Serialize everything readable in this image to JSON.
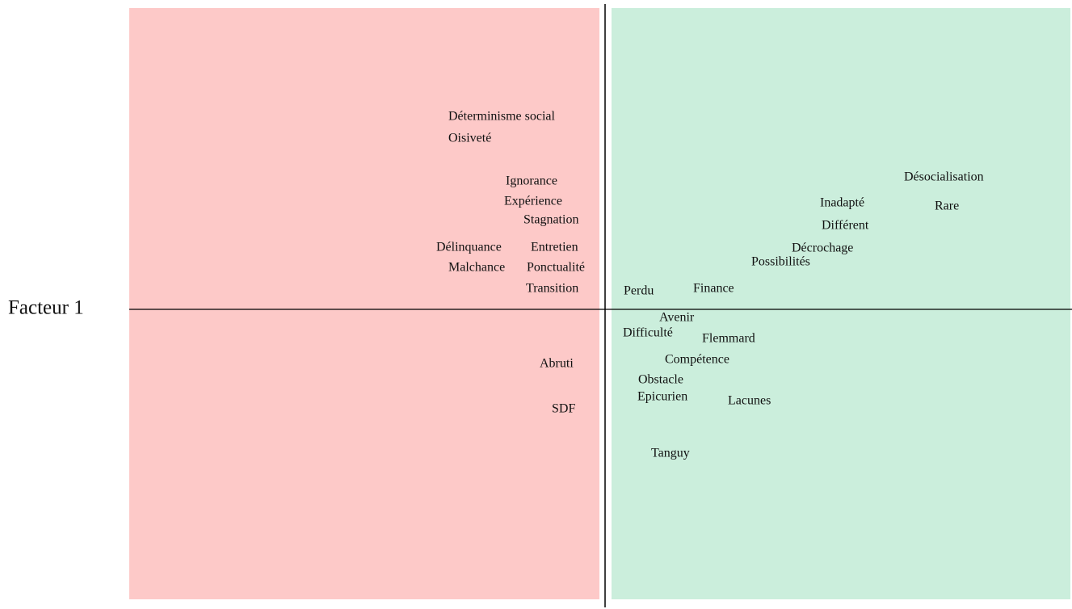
{
  "axis_label": "Facteur 1",
  "left_words": [
    "Déterminisme social",
    "Oisiveté",
    "Ignorance",
    "Expérience",
    "Stagnation",
    "Délinquance",
    "Entretien",
    "Malchance",
    "Ponctualité",
    "Transition",
    "Abruti",
    "SDF"
  ],
  "right_words": [
    "Désocialisation",
    "Inadapté",
    "Rare",
    "Différent",
    "Décrochage",
    "Possibilités",
    "Perdu",
    "Finance",
    "Avenir",
    "Difficulté",
    "Flemmard",
    "Compétence",
    "Obstacle",
    "Epicurien",
    "Lacunes",
    "Tanguy"
  ]
}
